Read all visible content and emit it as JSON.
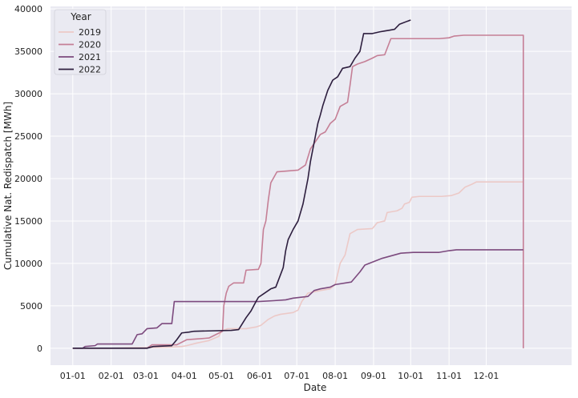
{
  "chart_data": {
    "type": "line",
    "xlabel": "Date",
    "ylabel": "Cumulative Nat. Redispatch [MWh]",
    "xlim": [
      -18,
      403
    ],
    "ylim": [
      -2000,
      40300
    ],
    "x_ticks": [
      {
        "label": "01-01",
        "day": 0
      },
      {
        "label": "02-01",
        "day": 31
      },
      {
        "label": "03-01",
        "day": 59
      },
      {
        "label": "04-01",
        "day": 90
      },
      {
        "label": "05-01",
        "day": 120
      },
      {
        "label": "06-01",
        "day": 151
      },
      {
        "label": "07-01",
        "day": 181
      },
      {
        "label": "08-01",
        "day": 212
      },
      {
        "label": "09-01",
        "day": 243
      },
      {
        "label": "10-01",
        "day": 273
      },
      {
        "label": "11-01",
        "day": 304
      },
      {
        "label": "12-01",
        "day": 334
      }
    ],
    "y_ticks": [
      0,
      5000,
      10000,
      15000,
      20000,
      25000,
      30000,
      35000,
      40000
    ],
    "grid": true,
    "background": "#eaeaf2",
    "legend": {
      "title": "Year",
      "position": "top-left"
    },
    "series": [
      {
        "name": "2019",
        "color": "#ecc9c7",
        "points": [
          [
            0,
            0
          ],
          [
            30,
            0
          ],
          [
            45,
            50
          ],
          [
            75,
            100
          ],
          [
            88,
            200
          ],
          [
            92,
            300
          ],
          [
            100,
            600
          ],
          [
            110,
            900
          ],
          [
            118,
            1400
          ],
          [
            120,
            2000
          ],
          [
            125,
            2300
          ],
          [
            140,
            2300
          ],
          [
            148,
            2500
          ],
          [
            152,
            2700
          ],
          [
            158,
            3400
          ],
          [
            163,
            3800
          ],
          [
            168,
            4000
          ],
          [
            178,
            4200
          ],
          [
            182,
            4500
          ],
          [
            185,
            5500
          ],
          [
            190,
            6500
          ],
          [
            200,
            6800
          ],
          [
            208,
            7000
          ],
          [
            212,
            7500
          ],
          [
            216,
            10000
          ],
          [
            220,
            11000
          ],
          [
            224,
            13500
          ],
          [
            230,
            14000
          ],
          [
            242,
            14100
          ],
          [
            246,
            14800
          ],
          [
            252,
            15000
          ],
          [
            254,
            16000
          ],
          [
            262,
            16200
          ],
          [
            266,
            16500
          ],
          [
            268,
            17000
          ],
          [
            272,
            17200
          ],
          [
            274,
            17800
          ],
          [
            280,
            17900
          ],
          [
            298,
            17900
          ],
          [
            306,
            18000
          ],
          [
            312,
            18300
          ],
          [
            317,
            19000
          ],
          [
            322,
            19300
          ],
          [
            326,
            19600
          ],
          [
            364,
            19600
          ]
        ]
      },
      {
        "name": "2020",
        "color": "#c57f96",
        "points": [
          [
            0,
            0
          ],
          [
            60,
            0
          ],
          [
            64,
            400
          ],
          [
            84,
            400
          ],
          [
            92,
            1000
          ],
          [
            110,
            1200
          ],
          [
            121,
            2000
          ],
          [
            122,
            5000
          ],
          [
            124,
            6500
          ],
          [
            126,
            7300
          ],
          [
            130,
            7700
          ],
          [
            138,
            7700
          ],
          [
            140,
            9200
          ],
          [
            150,
            9300
          ],
          [
            152,
            10000
          ],
          [
            154,
            14000
          ],
          [
            156,
            15000
          ],
          [
            158,
            17500
          ],
          [
            160,
            19500
          ],
          [
            165,
            20800
          ],
          [
            182,
            21000
          ],
          [
            188,
            21600
          ],
          [
            192,
            23500
          ],
          [
            200,
            25200
          ],
          [
            204,
            25500
          ],
          [
            208,
            26500
          ],
          [
            212,
            27000
          ],
          [
            216,
            28500
          ],
          [
            222,
            29000
          ],
          [
            224,
            31000
          ],
          [
            226,
            33200
          ],
          [
            230,
            33500
          ],
          [
            236,
            33800
          ],
          [
            242,
            34200
          ],
          [
            246,
            34500
          ],
          [
            252,
            34600
          ],
          [
            257,
            36500
          ],
          [
            296,
            36500
          ],
          [
            304,
            36600
          ],
          [
            308,
            36800
          ],
          [
            316,
            36900
          ],
          [
            334,
            36900
          ],
          [
            364,
            36900
          ],
          [
            364,
            0
          ]
        ]
      },
      {
        "name": "2021",
        "color": "#7c4a7e",
        "points": [
          [
            0,
            0
          ],
          [
            8,
            0
          ],
          [
            10,
            200
          ],
          [
            18,
            300
          ],
          [
            20,
            500
          ],
          [
            48,
            500
          ],
          [
            52,
            1600
          ],
          [
            56,
            1700
          ],
          [
            60,
            2300
          ],
          [
            68,
            2400
          ],
          [
            72,
            2900
          ],
          [
            80,
            2900
          ],
          [
            82,
            5500
          ],
          [
            150,
            5500
          ],
          [
            162,
            5600
          ],
          [
            172,
            5700
          ],
          [
            178,
            5900
          ],
          [
            190,
            6100
          ],
          [
            195,
            6800
          ],
          [
            200,
            7000
          ],
          [
            208,
            7200
          ],
          [
            212,
            7500
          ],
          [
            225,
            7800
          ],
          [
            232,
            9000
          ],
          [
            236,
            9800
          ],
          [
            250,
            10600
          ],
          [
            260,
            11000
          ],
          [
            265,
            11200
          ],
          [
            275,
            11300
          ],
          [
            296,
            11300
          ],
          [
            304,
            11500
          ],
          [
            310,
            11600
          ],
          [
            364,
            11600
          ]
        ]
      },
      {
        "name": "2022",
        "color": "#2d1e3e",
        "points": [
          [
            0,
            0
          ],
          [
            60,
            0
          ],
          [
            65,
            200
          ],
          [
            80,
            300
          ],
          [
            84,
            1000
          ],
          [
            88,
            1800
          ],
          [
            94,
            1900
          ],
          [
            98,
            2000
          ],
          [
            128,
            2100
          ],
          [
            134,
            2200
          ],
          [
            140,
            3600
          ],
          [
            144,
            4400
          ],
          [
            148,
            5500
          ],
          [
            150,
            6000
          ],
          [
            154,
            6400
          ],
          [
            160,
            7000
          ],
          [
            164,
            7200
          ],
          [
            170,
            9500
          ],
          [
            172,
            11500
          ],
          [
            174,
            12800
          ],
          [
            178,
            14000
          ],
          [
            182,
            15000
          ],
          [
            186,
            17000
          ],
          [
            190,
            20000
          ],
          [
            192,
            22000
          ],
          [
            194,
            23500
          ],
          [
            196,
            25000
          ],
          [
            198,
            26500
          ],
          [
            200,
            27500
          ],
          [
            202,
            28600
          ],
          [
            204,
            29500
          ],
          [
            206,
            30400
          ],
          [
            210,
            31600
          ],
          [
            214,
            32000
          ],
          [
            218,
            33000
          ],
          [
            224,
            33200
          ],
          [
            228,
            34200
          ],
          [
            232,
            35000
          ],
          [
            235,
            37100
          ],
          [
            242,
            37100
          ],
          [
            248,
            37300
          ],
          [
            252,
            37400
          ],
          [
            256,
            37500
          ],
          [
            260,
            37600
          ],
          [
            264,
            38200
          ],
          [
            273,
            38700
          ]
        ]
      }
    ]
  }
}
